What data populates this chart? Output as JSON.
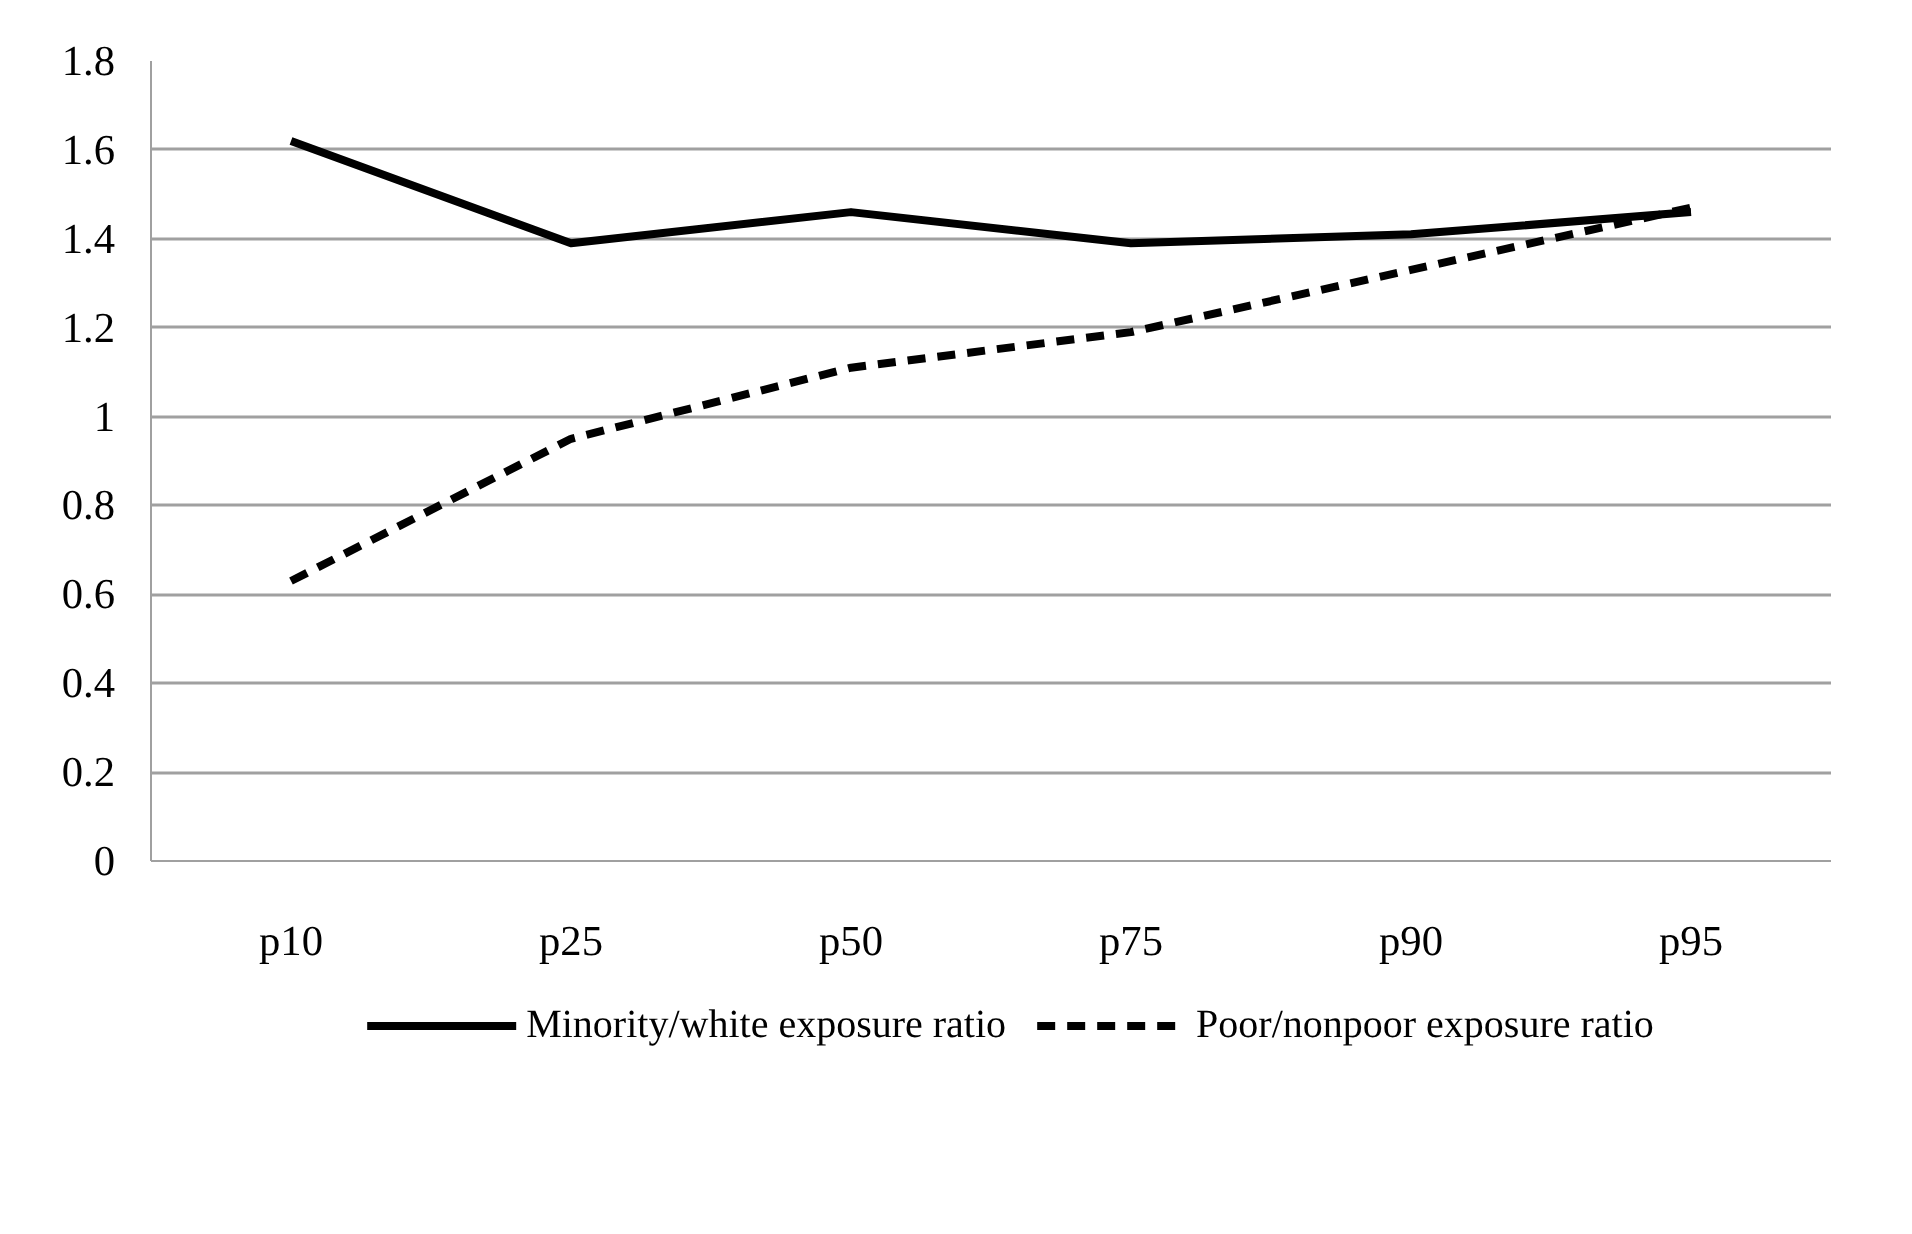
{
  "chart_data": {
    "type": "line",
    "categories": [
      "p10",
      "p25",
      "p50",
      "p75",
      "p90",
      "p95"
    ],
    "ylim": [
      0,
      1.8
    ],
    "yticks": [
      0,
      0.2,
      0.4,
      0.6,
      0.8,
      1,
      1.2,
      1.4,
      1.6,
      1.8
    ],
    "grid": "y",
    "legend": "bottom",
    "marker": "none",
    "series": [
      {
        "name": "Minority/white exposure ratio",
        "color": "#000000",
        "line_style": "solid",
        "values": [
          1.62,
          1.39,
          1.46,
          1.39,
          1.41,
          1.46
        ]
      },
      {
        "name": "Poor/nonpoor exposure ratio",
        "color": "#000000",
        "line_style": "dashed",
        "values": [
          0.63,
          0.95,
          1.11,
          1.19,
          1.33,
          1.47
        ]
      }
    ]
  }
}
